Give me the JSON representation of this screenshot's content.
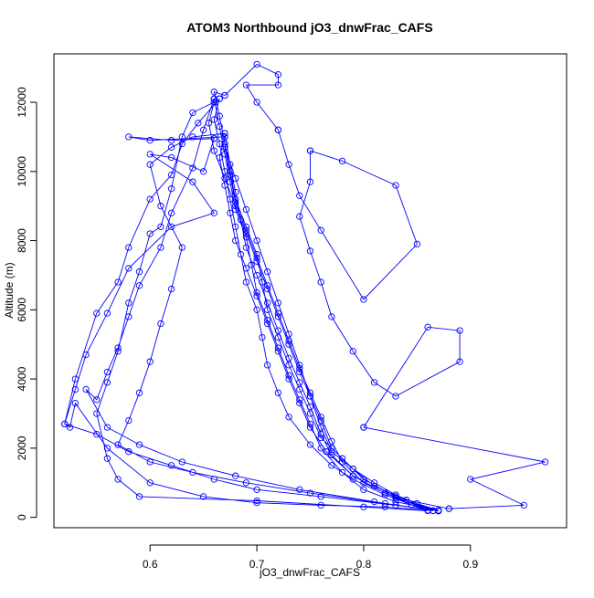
{
  "chart_data": {
    "type": "scatter",
    "title": "ATOM3 Northbound jO3_dnwFrac_CAFS",
    "xlabel": "jO3_dnwFrac_CAFS",
    "ylabel": "Altitude (m)",
    "xlim": [
      0.51,
      0.99
    ],
    "ylim": [
      -300,
      13400
    ],
    "xticks": [
      "0.6",
      "0.7",
      "0.8",
      "0.9"
    ],
    "yticks": [
      "0",
      "2000",
      "4000",
      "6000",
      "8000",
      "10000",
      "12000"
    ],
    "style": {
      "series_color": "#0000ff",
      "marker": "open-circle",
      "connected": true,
      "grid": false
    },
    "series": [
      {
        "values": [
          [
            0.87,
            180
          ],
          [
            0.845,
            360
          ],
          [
            0.82,
            700
          ],
          [
            0.79,
            1200
          ],
          [
            0.765,
            1900
          ],
          [
            0.75,
            2600
          ],
          [
            0.74,
            3300
          ],
          [
            0.73,
            4000
          ],
          [
            0.72,
            4800
          ],
          [
            0.71,
            5600
          ],
          [
            0.7,
            6400
          ],
          [
            0.69,
            7200
          ],
          [
            0.68,
            8000
          ],
          [
            0.675,
            8800
          ],
          [
            0.67,
            9600
          ],
          [
            0.665,
            10400
          ],
          [
            0.67,
            11000
          ],
          [
            0.67,
            11000
          ],
          [
            0.6,
            10900
          ],
          [
            0.58,
            11000
          ],
          [
            0.62,
            10900
          ],
          [
            0.66,
            10950
          ],
          [
            0.66,
            10950
          ],
          [
            0.65,
            10000
          ],
          [
            0.62,
            10400
          ],
          [
            0.6,
            10500
          ],
          [
            0.64,
            9700
          ],
          [
            0.66,
            8800
          ],
          [
            0.62,
            8400
          ],
          [
            0.58,
            7200
          ],
          [
            0.56,
            5900
          ],
          [
            0.54,
            4700
          ],
          [
            0.53,
            3700
          ],
          [
            0.52,
            2700
          ],
          [
            0.525,
            2600
          ],
          [
            0.53,
            3300
          ],
          [
            0.56,
            2000
          ],
          [
            0.6,
            1000
          ],
          [
            0.65,
            600
          ],
          [
            0.7,
            420
          ],
          [
            0.76,
            350
          ],
          [
            0.82,
            300
          ],
          [
            0.86,
            200
          ],
          [
            0.86,
            200
          ],
          [
            0.83,
            600
          ],
          [
            0.8,
            1100
          ],
          [
            0.78,
            1700
          ],
          [
            0.76,
            2300
          ],
          [
            0.75,
            3000
          ],
          [
            0.74,
            3700
          ],
          [
            0.73,
            4400
          ],
          [
            0.72,
            5200
          ],
          [
            0.71,
            6000
          ],
          [
            0.705,
            6800
          ],
          [
            0.7,
            7600
          ],
          [
            0.69,
            8400
          ],
          [
            0.68,
            9200
          ],
          [
            0.675,
            10000
          ],
          [
            0.67,
            10800
          ],
          [
            0.665,
            11600
          ],
          [
            0.66,
            12300
          ],
          [
            0.67,
            12200
          ],
          [
            0.67,
            12200
          ],
          [
            0.7,
            13100
          ],
          [
            0.72,
            12800
          ],
          [
            0.72,
            12500
          ],
          [
            0.69,
            12500
          ],
          [
            0.7,
            12000
          ],
          [
            0.72,
            11200
          ],
          [
            0.72,
            11200
          ],
          [
            0.73,
            10200
          ],
          [
            0.74,
            9300
          ],
          [
            0.76,
            8300
          ],
          [
            0.8,
            6300
          ],
          [
            0.85,
            7900
          ],
          [
            0.83,
            9600
          ],
          [
            0.78,
            10300
          ],
          [
            0.75,
            10600
          ],
          [
            0.75,
            10600
          ],
          [
            0.75,
            9700
          ],
          [
            0.74,
            8700
          ],
          [
            0.75,
            7700
          ],
          [
            0.76,
            6800
          ],
          [
            0.77,
            5800
          ],
          [
            0.79,
            4800
          ],
          [
            0.81,
            3900
          ],
          [
            0.83,
            3500
          ],
          [
            0.89,
            4500
          ],
          [
            0.89,
            5400
          ],
          [
            0.86,
            5500
          ],
          [
            0.8,
            2600
          ],
          [
            0.8,
            2600
          ],
          [
            0.97,
            1600
          ],
          [
            0.9,
            1100
          ],
          [
            0.95,
            350
          ],
          [
            0.88,
            250
          ],
          [
            0.88,
            250
          ],
          [
            0.84,
            500
          ],
          [
            0.81,
            900
          ],
          [
            0.79,
            1400
          ],
          [
            0.77,
            2000
          ],
          [
            0.76,
            2800
          ],
          [
            0.75,
            3500
          ],
          [
            0.74,
            4200
          ],
          [
            0.73,
            5000
          ],
          [
            0.72,
            5800
          ],
          [
            0.71,
            6600
          ],
          [
            0.7,
            7400
          ],
          [
            0.69,
            8200
          ],
          [
            0.68,
            9000
          ],
          [
            0.67,
            9800
          ],
          [
            0.66,
            10600
          ],
          [
            0.655,
            11400
          ],
          [
            0.66,
            12000
          ],
          [
            0.66,
            12000
          ],
          [
            0.64,
            11700
          ],
          [
            0.63,
            11000
          ],
          [
            0.62,
            9500
          ],
          [
            0.61,
            8400
          ],
          [
            0.6,
            8200
          ],
          [
            0.59,
            7100
          ],
          [
            0.58,
            6200
          ],
          [
            0.57,
            4800
          ],
          [
            0.56,
            3900
          ],
          [
            0.55,
            3000
          ],
          [
            0.56,
            1700
          ],
          [
            0.57,
            1100
          ],
          [
            0.59,
            600
          ],
          [
            0.7,
            480
          ],
          [
            0.8,
            300
          ],
          [
            0.86,
            190
          ],
          [
            0.86,
            190
          ],
          [
            0.82,
            650
          ],
          [
            0.79,
            1100
          ],
          [
            0.77,
            1500
          ],
          [
            0.75,
            2100
          ],
          [
            0.73,
            2900
          ],
          [
            0.72,
            3600
          ],
          [
            0.71,
            4400
          ],
          [
            0.705,
            5200
          ],
          [
            0.7,
            6000
          ],
          [
            0.69,
            6800
          ],
          [
            0.685,
            7600
          ],
          [
            0.68,
            8400
          ],
          [
            0.675,
            9200
          ],
          [
            0.67,
            10000
          ],
          [
            0.665,
            10800
          ],
          [
            0.66,
            11500
          ],
          [
            0.665,
            12100
          ],
          [
            0.665,
            12100
          ],
          [
            0.645,
            11400
          ],
          [
            0.63,
            10800
          ],
          [
            0.62,
            9900
          ],
          [
            0.6,
            9200
          ],
          [
            0.58,
            7800
          ],
          [
            0.57,
            6800
          ],
          [
            0.55,
            5900
          ],
          [
            0.53,
            4000
          ],
          [
            0.52,
            2700
          ],
          [
            0.55,
            2400
          ],
          [
            0.58,
            1900
          ],
          [
            0.62,
            1500
          ],
          [
            0.66,
            1100
          ],
          [
            0.7,
            800
          ],
          [
            0.76,
            600
          ],
          [
            0.83,
            350
          ],
          [
            0.87,
            200
          ],
          [
            0.87,
            200
          ],
          [
            0.83,
            450
          ],
          [
            0.8,
            800
          ],
          [
            0.78,
            1300
          ],
          [
            0.76,
            2000
          ],
          [
            0.75,
            2700
          ],
          [
            0.74,
            3400
          ],
          [
            0.73,
            4100
          ],
          [
            0.72,
            4900
          ],
          [
            0.71,
            5700
          ],
          [
            0.7,
            6500
          ],
          [
            0.695,
            7300
          ],
          [
            0.69,
            8100
          ],
          [
            0.68,
            8900
          ],
          [
            0.675,
            9700
          ],
          [
            0.67,
            10500
          ],
          [
            0.665,
            11300
          ],
          [
            0.66,
            12100
          ],
          [
            0.66,
            12100
          ],
          [
            0.65,
            11200
          ],
          [
            0.64,
            10100
          ],
          [
            0.62,
            8800
          ],
          [
            0.61,
            7800
          ],
          [
            0.59,
            6700
          ],
          [
            0.58,
            5800
          ],
          [
            0.57,
            4900
          ],
          [
            0.56,
            4200
          ],
          [
            0.55,
            3400
          ],
          [
            0.54,
            3700
          ],
          [
            0.56,
            2600
          ],
          [
            0.59,
            2100
          ],
          [
            0.63,
            1600
          ],
          [
            0.68,
            1200
          ],
          [
            0.74,
            800
          ],
          [
            0.81,
            450
          ],
          [
            0.865,
            190
          ],
          [
            0.865,
            190
          ],
          [
            0.82,
            700
          ],
          [
            0.79,
            1200
          ],
          [
            0.77,
            1800
          ],
          [
            0.76,
            2400
          ],
          [
            0.75,
            3200
          ],
          [
            0.74,
            3900
          ],
          [
            0.73,
            4600
          ],
          [
            0.72,
            5400
          ],
          [
            0.71,
            6200
          ],
          [
            0.7,
            7000
          ],
          [
            0.69,
            7800
          ],
          [
            0.685,
            8600
          ],
          [
            0.68,
            9400
          ],
          [
            0.675,
            10200
          ],
          [
            0.67,
            11100
          ],
          [
            0.67,
            11100
          ],
          [
            0.64,
            11000
          ],
          [
            0.62,
            10700
          ],
          [
            0.6,
            10200
          ],
          [
            0.61,
            9000
          ],
          [
            0.63,
            7800
          ],
          [
            0.62,
            6600
          ],
          [
            0.61,
            5600
          ],
          [
            0.6,
            4500
          ],
          [
            0.59,
            3600
          ],
          [
            0.58,
            2800
          ],
          [
            0.57,
            2100
          ],
          [
            0.6,
            1600
          ],
          [
            0.64,
            1300
          ],
          [
            0.69,
            1000
          ],
          [
            0.75,
            700
          ],
          [
            0.82,
            400
          ],
          [
            0.87,
            185
          ],
          [
            0.87,
            185
          ],
          [
            0.83,
            560
          ],
          [
            0.8,
            1000
          ],
          [
            0.78,
            1600
          ],
          [
            0.77,
            2200
          ],
          [
            0.76,
            2900
          ],
          [
            0.75,
            3600
          ],
          [
            0.74,
            4300
          ],
          [
            0.73,
            5100
          ],
          [
            0.72,
            5900
          ],
          [
            0.71,
            6700
          ],
          [
            0.7,
            7500
          ],
          [
            0.69,
            8300
          ],
          [
            0.68,
            9100
          ],
          [
            0.675,
            9900
          ],
          [
            0.67,
            10700
          ],
          [
            0.67,
            10700
          ],
          [
            0.68,
            9800
          ],
          [
            0.69,
            8900
          ],
          [
            0.7,
            8000
          ],
          [
            0.71,
            7100
          ],
          [
            0.72,
            6200
          ],
          [
            0.73,
            5300
          ],
          [
            0.74,
            4400
          ],
          [
            0.75,
            3500
          ],
          [
            0.76,
            2600
          ],
          [
            0.77,
            1900
          ],
          [
            0.79,
            1400
          ],
          [
            0.81,
            1000
          ],
          [
            0.83,
            650
          ],
          [
            0.85,
            400
          ],
          [
            0.87,
            200
          ]
        ]
      }
    ]
  }
}
